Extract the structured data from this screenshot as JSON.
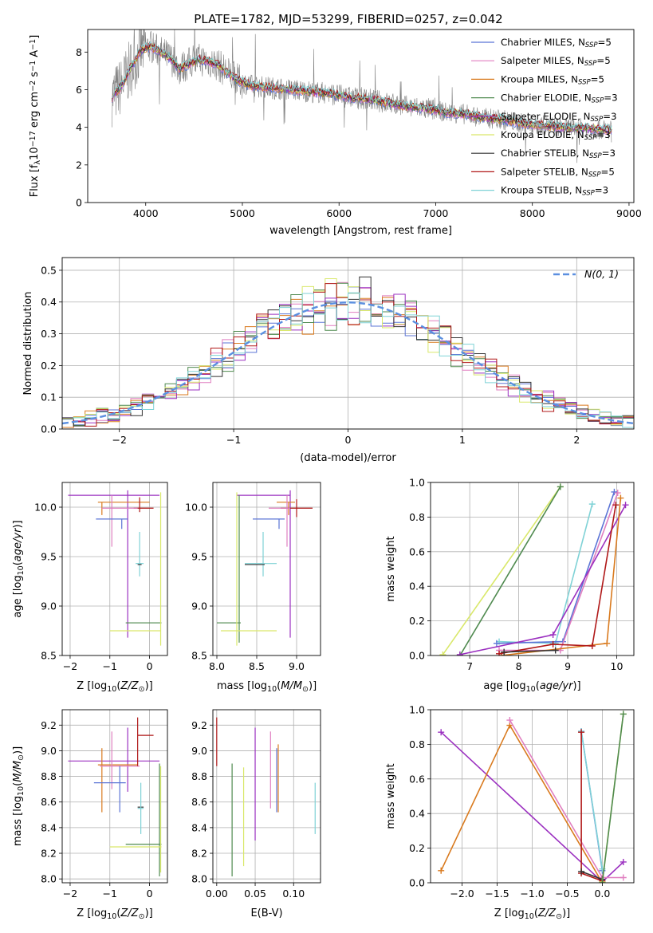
{
  "title": "PLATE=1782, MJD=53299, FIBERID=0257, z=0.042",
  "colors": {
    "chabrier_miles": "#5b74d6",
    "salpeter_miles": "#e07fc0",
    "kroupa_miles": "#d97a1e",
    "chabrier_elodie": "#4f8a4f",
    "salpeter_elodie": "#9b30c0",
    "kroupa_elodie": "#d9e86a",
    "chabrier_stelib": "#333333",
    "salpeter_stelib": "#b01818",
    "kroupa_stelib": "#7fd2d6",
    "data": "#808080",
    "normal": "#5b8fe0"
  },
  "chart_data": [
    {
      "type": "line",
      "xlabel": "wavelength [Angstrom, rest frame]",
      "ylabel": "Flux [f",
      "ylabel_parts": [
        "Flux [f",
        "λ",
        "10",
        "−17",
        " erg cm",
        "−2",
        " s",
        "−1",
        " A",
        "−1",
        "]"
      ],
      "xlim": [
        3400,
        9050
      ],
      "ylim": [
        0,
        9.2
      ],
      "xticks": [
        4000,
        5000,
        6000,
        7000,
        8000,
        9000
      ],
      "yticks": [
        0,
        2,
        4,
        6,
        8
      ],
      "legend": [
        {
          "key": "chabrier_miles",
          "label": "Chabrier MILES, N",
          "sub": "SSP",
          "suffix": "=5"
        },
        {
          "key": "salpeter_miles",
          "label": "Salpeter MILES, N",
          "sub": "SSP",
          "suffix": "=5"
        },
        {
          "key": "kroupa_miles",
          "label": "Kroupa MILES, N",
          "sub": "SSP",
          "suffix": "=5"
        },
        {
          "key": "chabrier_elodie",
          "label": "Chabrier ELODIE, N",
          "sub": "SSP",
          "suffix": "=3"
        },
        {
          "key": "salpeter_elodie",
          "label": "Salpeter ELODIE, N",
          "sub": "SSP",
          "suffix": "=3"
        },
        {
          "key": "kroupa_elodie",
          "label": "Kroupa ELODIE, N",
          "sub": "SSP",
          "suffix": "=3"
        },
        {
          "key": "chabrier_stelib",
          "label": "Chabrier STELIB, N",
          "sub": "SSP",
          "suffix": "=3"
        },
        {
          "key": "salpeter_stelib",
          "label": "Salpeter STELIB, N",
          "sub": "SSP",
          "suffix": "=5"
        },
        {
          "key": "kroupa_stelib",
          "label": "Kroupa STELIB, N",
          "sub": "SSP",
          "suffix": "=3"
        }
      ],
      "continuum": {
        "x": [
          3650,
          3750,
          3850,
          3950,
          4050,
          4150,
          4250,
          4350,
          4450,
          4550,
          4650,
          4750,
          4850,
          4950,
          5100,
          5300,
          5500,
          5700,
          5900,
          6100,
          6300,
          6500,
          6700,
          6900,
          7100,
          7300,
          7500,
          7700,
          7900,
          8100,
          8300,
          8500,
          8700,
          8820
        ],
        "y": [
          5.6,
          6.2,
          7.2,
          8.1,
          8.3,
          8.0,
          7.7,
          7.1,
          7.4,
          7.6,
          7.5,
          7.3,
          6.9,
          6.5,
          6.2,
          6.1,
          6.0,
          5.9,
          5.8,
          5.6,
          5.5,
          5.3,
          5.1,
          5.0,
          4.8,
          4.7,
          4.5,
          4.4,
          4.2,
          4.1,
          4.0,
          3.95,
          3.9,
          3.85
        ]
      }
    },
    {
      "type": "histogram",
      "xlabel": "(data-model)/error",
      "ylabel": "Normed distribution",
      "xlim": [
        -2.5,
        2.5
      ],
      "ylim": [
        0,
        0.54
      ],
      "xticks": [
        -2,
        -1,
        0,
        1,
        2
      ],
      "yticks": [
        0.0,
        0.1,
        0.2,
        0.3,
        0.4,
        0.5
      ],
      "grid": true,
      "legend": {
        "position": "top-right",
        "label": "N(0, 1)"
      },
      "bin_width": 0.1
    },
    {
      "type": "errorbar",
      "xlabel": "Z [log10(Z/Z⊙)]",
      "ylabel": "age  [log10(age/yr)]",
      "xlim": [
        -2.2,
        0.45
      ],
      "ylim": [
        8.5,
        10.25
      ],
      "xticks": [
        -2,
        -1,
        0
      ],
      "yticks": [
        8.5,
        9.0,
        9.5,
        10.0
      ],
      "points": [
        {
          "key": "salpeter_elodie",
          "x": -2.05,
          "x2": 0.25,
          "y": 10.12,
          "ylo": 8.68,
          "yhi": 10.17,
          "cx": -0.55
        },
        {
          "key": "kroupa_miles",
          "x": -1.3,
          "x2": 0.0,
          "y": 10.05,
          "ylo": 9.92,
          "yhi": 10.05,
          "cx": -1.2
        },
        {
          "key": "salpeter_stelib",
          "x": -0.4,
          "x2": 0.1,
          "y": 9.99,
          "ylo": 9.95,
          "yhi": 10.1,
          "cx": -0.25
        },
        {
          "key": "salpeter_miles",
          "x": -1.2,
          "x2": -0.3,
          "y": 9.99,
          "ylo": 9.6,
          "yhi": 10.12,
          "cx": -0.95
        },
        {
          "key": "chabrier_miles",
          "x": -1.35,
          "x2": -0.55,
          "y": 9.88,
          "ylo": 9.78,
          "yhi": 9.88,
          "cx": -0.7
        },
        {
          "key": "kroupa_stelib",
          "x": -0.35,
          "x2": -0.15,
          "y": 9.43,
          "ylo": 9.3,
          "yhi": 9.75,
          "cx": -0.25
        },
        {
          "key": "chabrier_elodie",
          "x": -0.6,
          "x2": 0.3,
          "y": 8.83,
          "ylo": 8.83,
          "yhi": 8.83,
          "cx": 0.25
        },
        {
          "key": "kroupa_elodie",
          "x": -1.0,
          "x2": 0.28,
          "y": 8.75,
          "ylo": 8.6,
          "yhi": 10.15,
          "cx": 0.28
        },
        {
          "key": "chabrier_stelib",
          "x": -0.3,
          "x2": -0.2,
          "y": 9.42,
          "ylo": 9.42,
          "yhi": 9.42,
          "cx": -0.25
        }
      ]
    },
    {
      "type": "errorbar",
      "xlabel": "mass [log10(M/M⊙)]",
      "ylabel": "",
      "xlim": [
        7.95,
        9.3
      ],
      "ylim": [
        8.5,
        10.25
      ],
      "xticks": [
        8.0,
        8.5,
        9.0
      ],
      "yticks": [
        8.5,
        9.0,
        9.5,
        10.0
      ],
      "points": [
        {
          "key": "salpeter_elodie",
          "x": 8.25,
          "x2": 8.92,
          "y": 10.12,
          "ylo": 8.68,
          "yhi": 10.17,
          "cx": 8.92
        },
        {
          "key": "kroupa_miles",
          "x": 8.75,
          "x2": 8.98,
          "y": 10.05,
          "ylo": 9.92,
          "yhi": 10.05,
          "cx": 8.9
        },
        {
          "key": "salpeter_stelib",
          "x": 8.8,
          "x2": 9.2,
          "y": 9.99,
          "ylo": 9.9,
          "yhi": 10.08,
          "cx": 9.0
        },
        {
          "key": "salpeter_miles",
          "x": 8.65,
          "x2": 8.92,
          "y": 9.99,
          "ylo": 9.6,
          "yhi": 10.12,
          "cx": 8.88
        },
        {
          "key": "chabrier_miles",
          "x": 8.45,
          "x2": 8.85,
          "y": 9.88,
          "ylo": 9.78,
          "yhi": 9.88,
          "cx": 8.78
        },
        {
          "key": "kroupa_stelib",
          "x": 8.35,
          "x2": 8.75,
          "y": 9.43,
          "ylo": 9.3,
          "yhi": 9.75,
          "cx": 8.58
        },
        {
          "key": "chabrier_stelib",
          "x": 8.35,
          "x2": 8.6,
          "y": 9.42,
          "ylo": 9.42,
          "yhi": 9.42,
          "cx": 8.48
        },
        {
          "key": "chabrier_elodie",
          "x": 8.0,
          "x2": 8.3,
          "y": 8.83,
          "ylo": 8.63,
          "yhi": 10.12,
          "cx": 8.28
        },
        {
          "key": "kroupa_elodie",
          "x": 8.05,
          "x2": 8.75,
          "y": 8.75,
          "ylo": 8.6,
          "yhi": 10.15,
          "cx": 8.25
        }
      ]
    },
    {
      "type": "line",
      "xlabel": "age  [log10(age/yr)]",
      "ylabel": "mass weight",
      "xlim": [
        6.2,
        10.35
      ],
      "ylim": [
        0,
        1.0
      ],
      "xticks": [
        7,
        8,
        9,
        10
      ],
      "yticks": [
        0.0,
        0.2,
        0.4,
        0.6,
        0.8,
        1.0
      ],
      "grid": true,
      "series": [
        {
          "key": "kroupa_elodie",
          "x": [
            6.45,
            8.85
          ],
          "y": [
            0.005,
            0.975
          ]
        },
        {
          "key": "chabrier_elodie",
          "x": [
            6.8,
            8.85
          ],
          "y": [
            0.0,
            0.975
          ]
        },
        {
          "key": "kroupa_stelib",
          "x": [
            7.6,
            8.75,
            9.5
          ],
          "y": [
            0.08,
            0.07,
            0.875
          ]
        },
        {
          "key": "chabrier_miles",
          "x": [
            7.55,
            8.9,
            9.95
          ],
          "y": [
            0.07,
            0.08,
            0.945
          ]
        },
        {
          "key": "salpeter_miles",
          "x": [
            7.6,
            8.85,
            10.02
          ],
          "y": [
            0.03,
            0.03,
            0.94
          ]
        },
        {
          "key": "salpeter_elodie",
          "x": [
            6.8,
            8.7,
            10.18
          ],
          "y": [
            0.005,
            0.12,
            0.87
          ]
        },
        {
          "key": "kroupa_miles",
          "x": [
            7.65,
            9.8,
            10.08
          ],
          "y": [
            0.0,
            0.07,
            0.91
          ]
        },
        {
          "key": "salpeter_stelib",
          "x": [
            7.6,
            8.7,
            9.5,
            9.98
          ],
          "y": [
            0.01,
            0.065,
            0.055,
            0.87
          ]
        },
        {
          "key": "chabrier_stelib",
          "x": [
            7.7,
            8.75
          ],
          "y": [
            0.02,
            0.03
          ]
        }
      ]
    },
    {
      "type": "errorbar",
      "xlabel": "Z [log10(Z/Z⊙)]",
      "ylabel": "mass [log10(M/M⊙)]",
      "xlim": [
        -2.2,
        0.45
      ],
      "ylim": [
        7.97,
        9.32
      ],
      "xticks": [
        -2,
        -1,
        0
      ],
      "yticks": [
        8.0,
        8.2,
        8.4,
        8.6,
        8.8,
        9.0,
        9.2
      ],
      "points": [
        {
          "key": "salpeter_elodie",
          "x": -2.05,
          "x2": 0.25,
          "y": 8.92,
          "ylo": 8.68,
          "yhi": 9.18,
          "cx": -0.55
        },
        {
          "key": "kroupa_miles",
          "x": -1.3,
          "x2": -0.3,
          "y": 8.89,
          "ylo": 8.52,
          "yhi": 9.02,
          "cx": -1.2
        },
        {
          "key": "salpeter_miles",
          "x": -1.25,
          "x2": -0.25,
          "y": 8.88,
          "ylo": 8.7,
          "yhi": 9.15,
          "cx": -0.95
        },
        {
          "key": "salpeter_stelib",
          "x": -0.3,
          "x2": 0.1,
          "y": 9.12,
          "ylo": 8.88,
          "yhi": 9.26,
          "cx": -0.3
        },
        {
          "key": "chabrier_miles",
          "x": -1.4,
          "x2": -0.6,
          "y": 8.75,
          "ylo": 8.52,
          "yhi": 8.88,
          "cx": -0.75
        },
        {
          "key": "chabrier_stelib",
          "x": -0.3,
          "x2": -0.15,
          "y": 8.56,
          "ylo": 8.56,
          "yhi": 8.56,
          "cx": -0.22
        },
        {
          "key": "kroupa_stelib",
          "x": -0.3,
          "x2": -0.15,
          "y": 8.55,
          "ylo": 8.35,
          "yhi": 8.75,
          "cx": -0.22
        },
        {
          "key": "chabrier_elodie",
          "x": -0.6,
          "x2": 0.3,
          "y": 8.27,
          "ylo": 8.02,
          "yhi": 8.9,
          "cx": 0.25
        },
        {
          "key": "kroupa_elodie",
          "x": -1.0,
          "x2": 0.3,
          "y": 8.25,
          "ylo": 8.05,
          "yhi": 8.88,
          "cx": 0.28
        }
      ]
    },
    {
      "type": "errorbar",
      "xlabel": "E(B-V)",
      "ylabel": "",
      "xlim": [
        -0.005,
        0.135
      ],
      "ylim": [
        7.97,
        9.32
      ],
      "xticks": [
        0.0,
        0.05,
        0.1
      ],
      "yticks": [
        8.0,
        8.2,
        8.4,
        8.6,
        8.8,
        9.0,
        9.2
      ],
      "points": [
        {
          "key": "salpeter_stelib",
          "x": 0.0,
          "x2": 0.0,
          "y": 9.12,
          "ylo": 8.88,
          "yhi": 9.26,
          "cx": 0.0
        },
        {
          "key": "chabrier_elodie",
          "x": 0.02,
          "x2": 0.02,
          "y": 8.27,
          "ylo": 8.02,
          "yhi": 8.9,
          "cx": 0.02
        },
        {
          "key": "kroupa_elodie",
          "x": 0.035,
          "x2": 0.035,
          "y": 8.25,
          "ylo": 8.1,
          "yhi": 8.87,
          "cx": 0.035
        },
        {
          "key": "salpeter_elodie",
          "x": 0.05,
          "x2": 0.05,
          "y": 8.92,
          "ylo": 8.3,
          "yhi": 9.18,
          "cx": 0.05
        },
        {
          "key": "salpeter_miles",
          "x": 0.07,
          "x2": 0.07,
          "y": 8.88,
          "ylo": 8.55,
          "yhi": 9.15,
          "cx": 0.07
        },
        {
          "key": "chabrier_miles",
          "x": 0.078,
          "x2": 0.078,
          "y": 8.75,
          "ylo": 8.52,
          "yhi": 9.02,
          "cx": 0.078
        },
        {
          "key": "kroupa_miles",
          "x": 0.08,
          "x2": 0.08,
          "y": 8.89,
          "ylo": 8.52,
          "yhi": 9.05,
          "cx": 0.08
        },
        {
          "key": "kroupa_stelib",
          "x": 0.128,
          "x2": 0.128,
          "y": 8.55,
          "ylo": 8.35,
          "yhi": 8.75,
          "cx": 0.128
        },
        {
          "key": "chabrier_stelib",
          "x": 0.128,
          "x2": 0.128,
          "y": 8.36,
          "ylo": 8.36,
          "yhi": 8.36,
          "cx": 0.128
        }
      ]
    },
    {
      "type": "line",
      "xlabel": "Z [log10(Z/Z⊙)]",
      "ylabel": "mass weight",
      "xlim": [
        -2.45,
        0.45
      ],
      "ylim": [
        0,
        1.0
      ],
      "xticks": [
        -2.0,
        -1.5,
        -1.0,
        -0.5,
        0.0
      ],
      "yticks": [
        0.0,
        0.2,
        0.4,
        0.6,
        0.8,
        1.0
      ],
      "grid": true,
      "series": [
        {
          "key": "salpeter_elodie",
          "x": [
            -2.3,
            0.0,
            0.3
          ],
          "y": [
            0.87,
            0.005,
            0.12
          ]
        },
        {
          "key": "kroupa_miles",
          "x": [
            -2.3,
            -1.32,
            0.0
          ],
          "y": [
            0.07,
            0.91,
            0.0
          ]
        },
        {
          "key": "salpeter_miles",
          "x": [
            -1.32,
            0.0,
            0.3
          ],
          "y": [
            0.94,
            0.03,
            0.03
          ]
        },
        {
          "key": "chabrier_miles",
          "x": [
            -0.3,
            0.0
          ],
          "y": [
            0.875,
            0.07
          ]
        },
        {
          "key": "kroupa_stelib",
          "x": [
            -0.3,
            0.0
          ],
          "y": [
            0.875,
            0.08
          ]
        },
        {
          "key": "salpeter_stelib",
          "x": [
            -0.3,
            -0.3,
            0.0
          ],
          "y": [
            0.87,
            0.055,
            0.01
          ]
        },
        {
          "key": "chabrier_stelib",
          "x": [
            -0.3,
            0.0
          ],
          "y": [
            0.065,
            0.02
          ]
        },
        {
          "key": "kroupa_elodie",
          "x": [
            0.0,
            0.3
          ],
          "y": [
            0.005,
            0.975
          ]
        },
        {
          "key": "chabrier_elodie",
          "x": [
            0.0,
            0.3
          ],
          "y": [
            0.0,
            0.975
          ]
        }
      ]
    }
  ]
}
